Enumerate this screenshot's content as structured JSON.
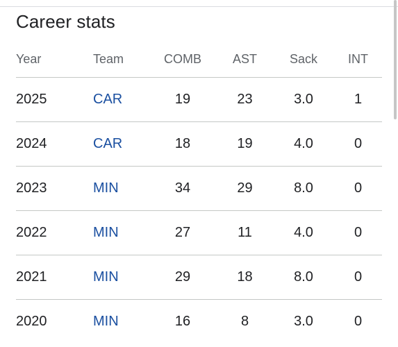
{
  "section": {
    "title": "Career stats"
  },
  "table": {
    "headers": {
      "year": "Year",
      "team": "Team",
      "comb": "COMB",
      "ast": "AST",
      "sack": "Sack",
      "int": "INT"
    },
    "rows": [
      {
        "year": "2025",
        "team": "CAR",
        "comb": "19",
        "ast": "23",
        "sack": "3.0",
        "int": "1"
      },
      {
        "year": "2024",
        "team": "CAR",
        "comb": "18",
        "ast": "19",
        "sack": "4.0",
        "int": "0"
      },
      {
        "year": "2023",
        "team": "MIN",
        "comb": "34",
        "ast": "29",
        "sack": "8.0",
        "int": "0"
      },
      {
        "year": "2022",
        "team": "MIN",
        "comb": "27",
        "ast": "11",
        "sack": "4.0",
        "int": "0"
      },
      {
        "year": "2021",
        "team": "MIN",
        "comb": "29",
        "ast": "18",
        "sack": "8.0",
        "int": "0"
      },
      {
        "year": "2020",
        "team": "MIN",
        "comb": "16",
        "ast": "8",
        "sack": "3.0",
        "int": "0"
      }
    ]
  },
  "colors": {
    "link": "#1a4fa0",
    "text": "#202124",
    "header_text": "#5f6368",
    "divider": "#c4c7c5"
  }
}
